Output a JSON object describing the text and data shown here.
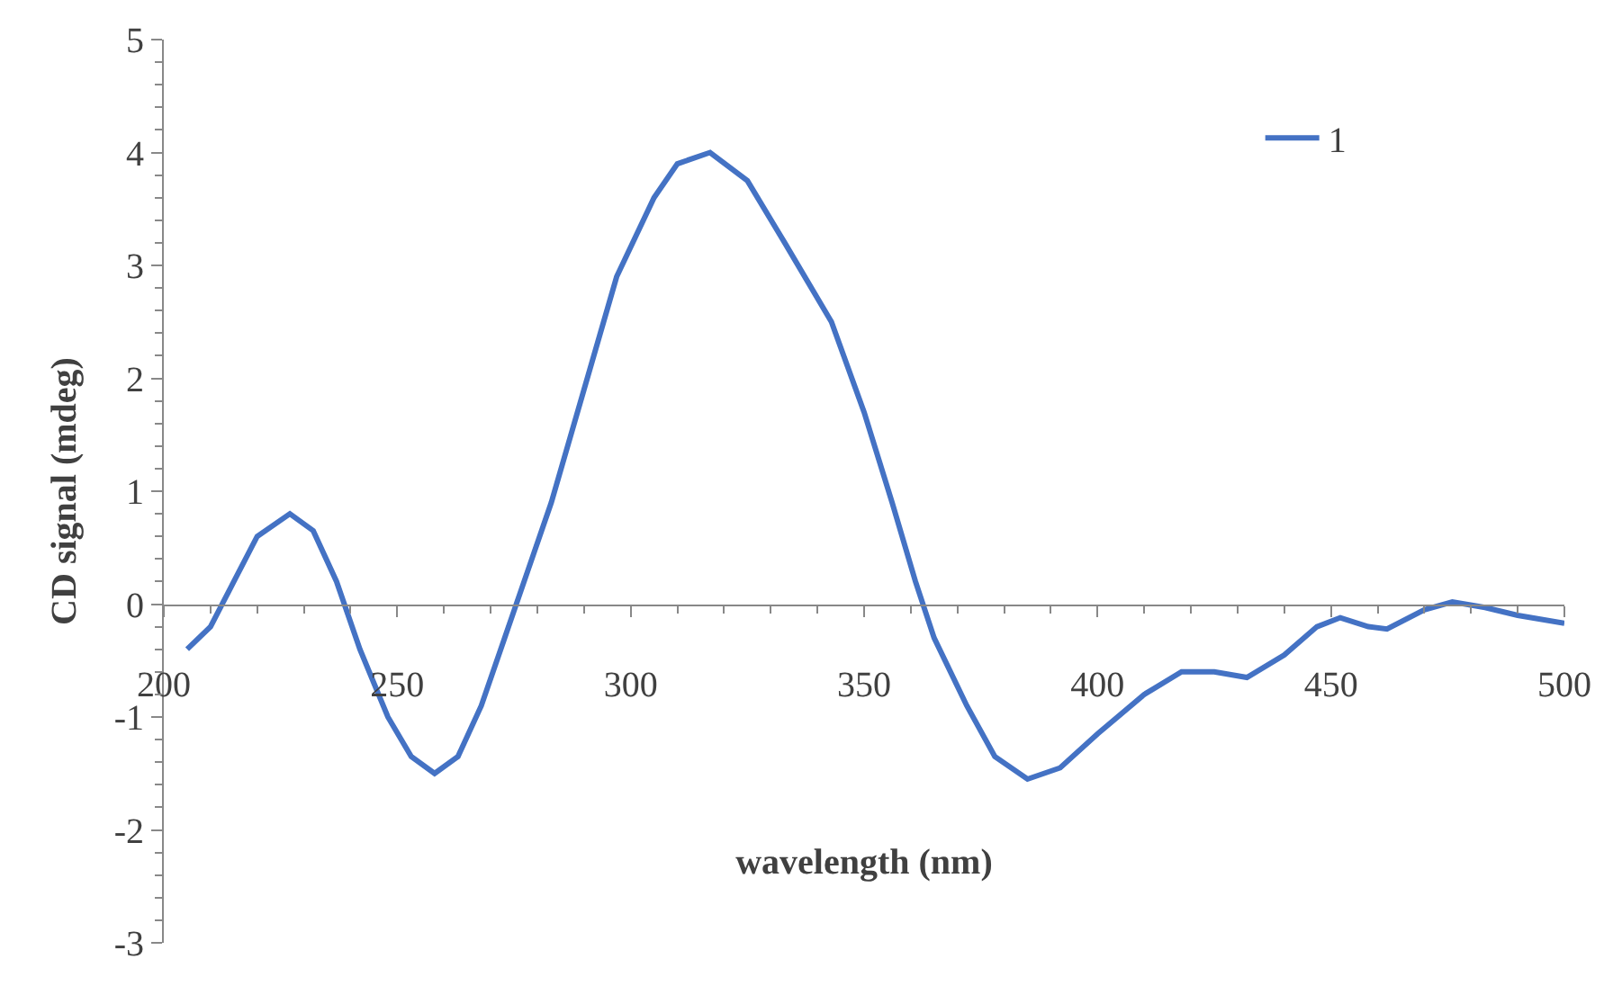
{
  "chart_data": {
    "type": "line",
    "xlabel": "wavelength (nm)",
    "ylabel": "CD signal (mdeg)",
    "xlim": [
      200,
      500
    ],
    "xticks": [
      200,
      250,
      300,
      350,
      400,
      450,
      500
    ],
    "ylim": [
      -3,
      5
    ],
    "yticks": [
      -3,
      -2,
      -1,
      0,
      1,
      2,
      3,
      4,
      5
    ],
    "legend": "top right",
    "marker": "none",
    "line_style": "solid",
    "series": [
      {
        "name": "1",
        "color": "#4472c4",
        "x": [
          205,
          210,
          215,
          220,
          227,
          232,
          237,
          242,
          248,
          253,
          258,
          263,
          268,
          273,
          278,
          283,
          290,
          297,
          305,
          310,
          317,
          325,
          333,
          343,
          350,
          356,
          361,
          365,
          372,
          378,
          385,
          392,
          400,
          410,
          418,
          425,
          432,
          440,
          447,
          452,
          458,
          462,
          470,
          476,
          483,
          490,
          500
        ],
        "values": [
          -0.4,
          -0.2,
          0.2,
          0.6,
          0.8,
          0.65,
          0.2,
          -0.4,
          -1.0,
          -1.35,
          -1.5,
          -1.35,
          -0.9,
          -0.3,
          0.3,
          0.9,
          1.9,
          2.9,
          3.6,
          3.9,
          4.0,
          3.75,
          3.2,
          2.5,
          1.7,
          0.9,
          0.2,
          -0.3,
          -0.9,
          -1.35,
          -1.55,
          -1.45,
          -1.15,
          -0.8,
          -0.6,
          -0.6,
          -0.65,
          -0.45,
          -0.2,
          -0.12,
          -0.2,
          -0.22,
          -0.05,
          0.02,
          -0.03,
          -0.1,
          -0.17
        ]
      }
    ]
  }
}
